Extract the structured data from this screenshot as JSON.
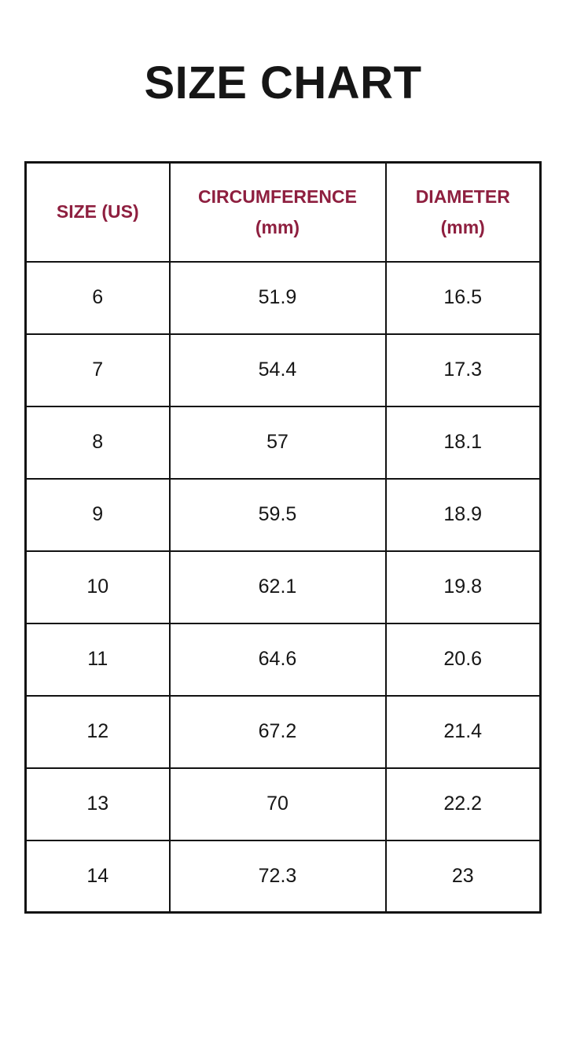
{
  "page": {
    "title": "SIZE CHART",
    "background_color": "#ffffff",
    "title_color": "#161616",
    "header_text_color": "#8E1F3F",
    "border_color": "#121212"
  },
  "table": {
    "header": {
      "size_label": "SIZE (US)",
      "circumference_label": "CIRCUMFERENCE",
      "circumference_unit": "(mm)",
      "diameter_label": "DIAMETER",
      "diameter_unit": "(mm)"
    }
  },
  "chart_data": {
    "type": "table",
    "title": "SIZE CHART",
    "columns": [
      "SIZE (US)",
      "CIRCUMFERENCE (mm)",
      "DIAMETER (mm)"
    ],
    "rows": [
      [
        6,
        51.9,
        16.5
      ],
      [
        7,
        54.4,
        17.3
      ],
      [
        8,
        57,
        18.1
      ],
      [
        9,
        59.5,
        18.9
      ],
      [
        10,
        62.1,
        19.8
      ],
      [
        11,
        64.6,
        20.6
      ],
      [
        12,
        67.2,
        21.4
      ],
      [
        13,
        70,
        22.2
      ],
      [
        14,
        72.3,
        23
      ]
    ]
  }
}
